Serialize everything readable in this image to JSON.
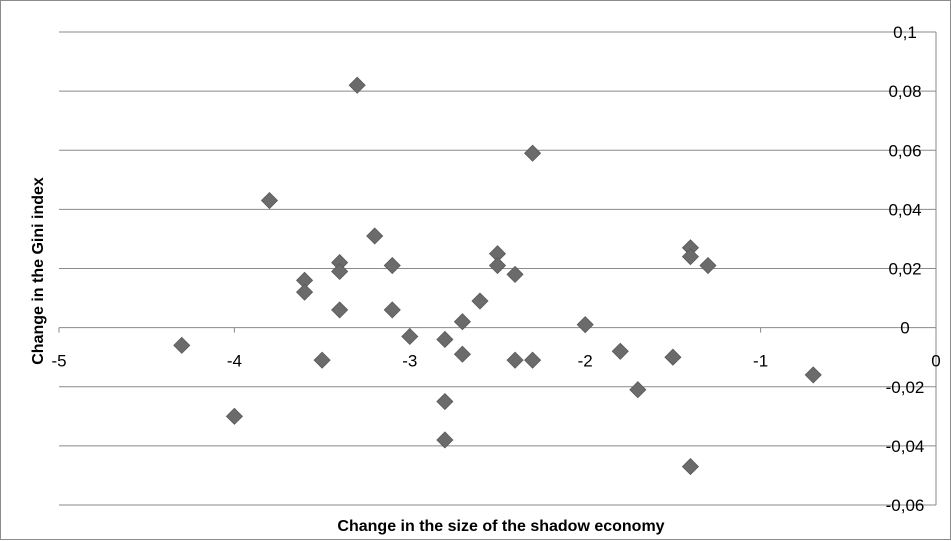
{
  "chart_data": {
    "type": "scatter",
    "title": "",
    "xlabel": "Change in the size of the shadow economy",
    "ylabel": "Change in the Gini index",
    "xlim": [
      -5,
      0
    ],
    "ylim": [
      -0.06,
      0.1
    ],
    "x_ticks": [
      -5,
      -4,
      -3,
      -2,
      -1,
      0
    ],
    "x_tick_labels": [
      "-5",
      "-4",
      "-3",
      "-2",
      "-1",
      "0"
    ],
    "y_ticks": [
      0.1,
      0.08,
      0.06,
      0.04,
      0.02,
      0,
      -0.02,
      -0.04,
      -0.06
    ],
    "y_tick_labels": [
      "0,1",
      "0,08",
      "0,06",
      "0,04",
      "0,02",
      "0",
      "-0,02",
      "-0,04",
      "-0,06"
    ],
    "grid": "horizontal",
    "marker": "diamond",
    "marker_color": "#6b6b6b",
    "points": [
      {
        "x": -4.3,
        "y": -0.006
      },
      {
        "x": -4.0,
        "y": -0.03
      },
      {
        "x": -3.8,
        "y": 0.043
      },
      {
        "x": -3.6,
        "y": 0.016
      },
      {
        "x": -3.6,
        "y": 0.012
      },
      {
        "x": -3.5,
        "y": -0.011
      },
      {
        "x": -3.4,
        "y": 0.022
      },
      {
        "x": -3.4,
        "y": 0.019
      },
      {
        "x": -3.4,
        "y": 0.006
      },
      {
        "x": -3.3,
        "y": 0.082
      },
      {
        "x": -3.2,
        "y": 0.031
      },
      {
        "x": -3.1,
        "y": 0.021
      },
      {
        "x": -3.1,
        "y": 0.006
      },
      {
        "x": -3.0,
        "y": -0.003
      },
      {
        "x": -2.8,
        "y": -0.004
      },
      {
        "x": -2.8,
        "y": -0.025
      },
      {
        "x": -2.8,
        "y": -0.038
      },
      {
        "x": -2.7,
        "y": 0.002
      },
      {
        "x": -2.7,
        "y": -0.009
      },
      {
        "x": -2.6,
        "y": 0.009
      },
      {
        "x": -2.5,
        "y": 0.025
      },
      {
        "x": -2.5,
        "y": 0.021
      },
      {
        "x": -2.4,
        "y": 0.018
      },
      {
        "x": -2.4,
        "y": -0.011
      },
      {
        "x": -2.3,
        "y": 0.059
      },
      {
        "x": -2.3,
        "y": -0.011
      },
      {
        "x": -2.0,
        "y": 0.001
      },
      {
        "x": -1.8,
        "y": -0.008
      },
      {
        "x": -1.7,
        "y": -0.021
      },
      {
        "x": -1.5,
        "y": -0.01
      },
      {
        "x": -1.4,
        "y": 0.027
      },
      {
        "x": -1.4,
        "y": 0.024
      },
      {
        "x": -1.4,
        "y": -0.047
      },
      {
        "x": -1.3,
        "y": 0.021
      },
      {
        "x": -0.7,
        "y": -0.016
      }
    ]
  }
}
